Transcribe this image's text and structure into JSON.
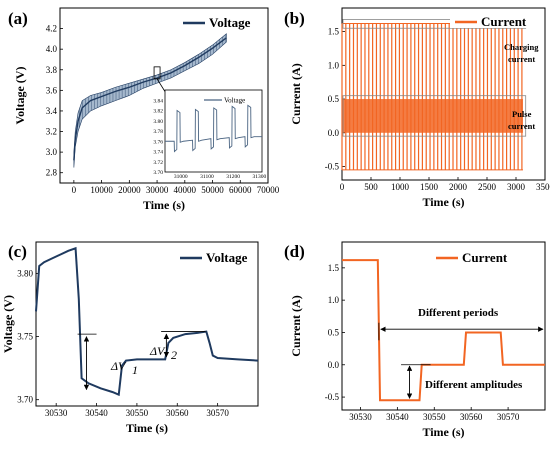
{
  "panels": [
    {
      "label": "(a)"
    },
    {
      "label": "(b)"
    },
    {
      "label": "(c)"
    },
    {
      "label": "(d)"
    }
  ],
  "chart_data": [
    {
      "type": "line",
      "panel": "(a)",
      "xlabel": "Time (s)",
      "ylabel": "Voltage (V)",
      "xlim": [
        -5000,
        70000
      ],
      "ylim": [
        2.7,
        4.4
      ],
      "xticks": [
        0,
        10000,
        20000,
        30000,
        40000,
        50000,
        60000,
        70000
      ],
      "yticks": [
        2.8,
        3.0,
        3.2,
        3.4,
        3.6,
        3.8,
        4.0,
        4.2
      ],
      "legend": "top-right",
      "series": [
        {
          "name": "Voltage",
          "color": "#1f3a5f",
          "x": [
            0,
            500,
            1500,
            3000,
            6000,
            10000,
            15000,
            20000,
            25000,
            30000,
            35000,
            40000,
            45000,
            50000,
            55000
          ],
          "y_upper": [
            3.0,
            3.2,
            3.38,
            3.5,
            3.55,
            3.58,
            3.63,
            3.67,
            3.71,
            3.75,
            3.8,
            3.87,
            3.95,
            4.04,
            4.15
          ],
          "y_lower": [
            2.85,
            3.05,
            3.2,
            3.32,
            3.4,
            3.45,
            3.5,
            3.55,
            3.62,
            3.67,
            3.72,
            3.79,
            3.86,
            3.95,
            4.07
          ],
          "y": [
            2.92,
            3.12,
            3.3,
            3.43,
            3.5,
            3.54,
            3.59,
            3.63,
            3.68,
            3.72,
            3.77,
            3.84,
            3.92,
            4.01,
            4.11
          ]
        }
      ],
      "inset": {
        "xlim": [
          30940,
          31310
        ],
        "ylim": [
          3.7,
          3.86
        ],
        "xticks": [
          31000,
          31100,
          31200,
          31300
        ],
        "yticks": [
          3.7,
          3.72,
          3.74,
          3.76,
          3.78,
          3.8,
          3.82,
          3.84
        ],
        "legend": "Voltage",
        "pulses": [
          {
            "t0": 30975,
            "top": 3.82,
            "base": 3.76,
            "low": 3.74
          },
          {
            "t0": 31045,
            "top": 3.822,
            "base": 3.762,
            "low": 3.742
          },
          {
            "t0": 31115,
            "top": 3.825,
            "base": 3.765,
            "low": 3.745
          },
          {
            "t0": 31185,
            "top": 3.828,
            "base": 3.767,
            "low": 3.747
          },
          {
            "t0": 31245,
            "top": 3.83,
            "base": 3.769,
            "low": 3.749
          }
        ]
      }
    },
    {
      "type": "line",
      "panel": "(b)",
      "xlabel": "Time (s)",
      "ylabel": "Current (A)",
      "xlim": [
        0,
        3500
      ],
      "ylim": [
        -0.7,
        1.85
      ],
      "xticks": [
        0,
        500,
        1000,
        1500,
        2000,
        2500,
        3000,
        3500
      ],
      "yticks": [
        -0.5,
        0.0,
        0.5,
        1.0,
        1.5
      ],
      "legend": "top-right",
      "series": [
        {
          "name": "Current",
          "color": "#f26522",
          "period": 66,
          "charging_level": 1.62,
          "pulse_high": 0.5,
          "pulse_low": -0.55,
          "t_end": 3120
        }
      ],
      "annotations": [
        {
          "text": "Charging current",
          "lines": [
            "Charging",
            "current"
          ]
        },
        {
          "text": "Pulse current",
          "lines": [
            "Pulse",
            "current"
          ]
        }
      ]
    },
    {
      "type": "line",
      "panel": "(c)",
      "xlabel": "Time (s)",
      "ylabel": "Voltage (V)",
      "xlim": [
        30525,
        30580
      ],
      "ylim": [
        3.695,
        3.825
      ],
      "xticks": [
        30530,
        30540,
        30550,
        30560,
        30570
      ],
      "yticks": [
        3.7,
        3.75,
        3.8
      ],
      "legend": "top-right",
      "series": [
        {
          "name": "Voltage",
          "color": "#1f3a5f",
          "x": [
            30525,
            30525.8,
            30527,
            30529,
            30531,
            30533,
            30534.8,
            30535.6,
            30536.3,
            30538,
            30541,
            30544,
            30545.5,
            30546.3,
            30547.3,
            30550,
            30553,
            30556,
            30557,
            30557.8,
            30559,
            30562,
            30565,
            30567.2,
            30568,
            30568.8,
            30570,
            30575,
            30580
          ],
          "y": [
            3.77,
            3.806,
            3.809,
            3.812,
            3.815,
            3.818,
            3.82,
            3.78,
            3.717,
            3.713,
            3.709,
            3.706,
            3.704,
            3.727,
            3.731,
            3.732,
            3.732,
            3.732,
            3.732,
            3.745,
            3.749,
            3.752,
            3.753,
            3.754,
            3.745,
            3.735,
            3.733,
            3.732,
            3.731
          ]
        }
      ],
      "annotations": [
        "ΔV",
        "ΔV"
      ],
      "annotation_subscripts": [
        "1",
        "2"
      ]
    },
    {
      "type": "line",
      "panel": "(d)",
      "xlabel": "Time (s)",
      "ylabel": "Current (A)",
      "xlim": [
        30525,
        30580
      ],
      "ylim": [
        -0.7,
        1.9
      ],
      "xticks": [
        30530,
        30540,
        30550,
        30560,
        30570
      ],
      "yticks": [
        -0.5,
        0.0,
        0.5,
        1.0,
        1.5
      ],
      "legend": "top-right",
      "series": [
        {
          "name": "Current",
          "color": "#f26522",
          "x": [
            30525,
            30534.7,
            30535.3,
            30546,
            30546.6,
            30558,
            30558.6,
            30568,
            30568.6,
            30580
          ],
          "y": [
            1.62,
            1.62,
            -0.55,
            -0.55,
            0.0,
            0.0,
            0.5,
            0.5,
            0.0,
            0.0
          ]
        }
      ],
      "annotations": [
        "Different periods",
        "Different amplitudes"
      ]
    }
  ]
}
